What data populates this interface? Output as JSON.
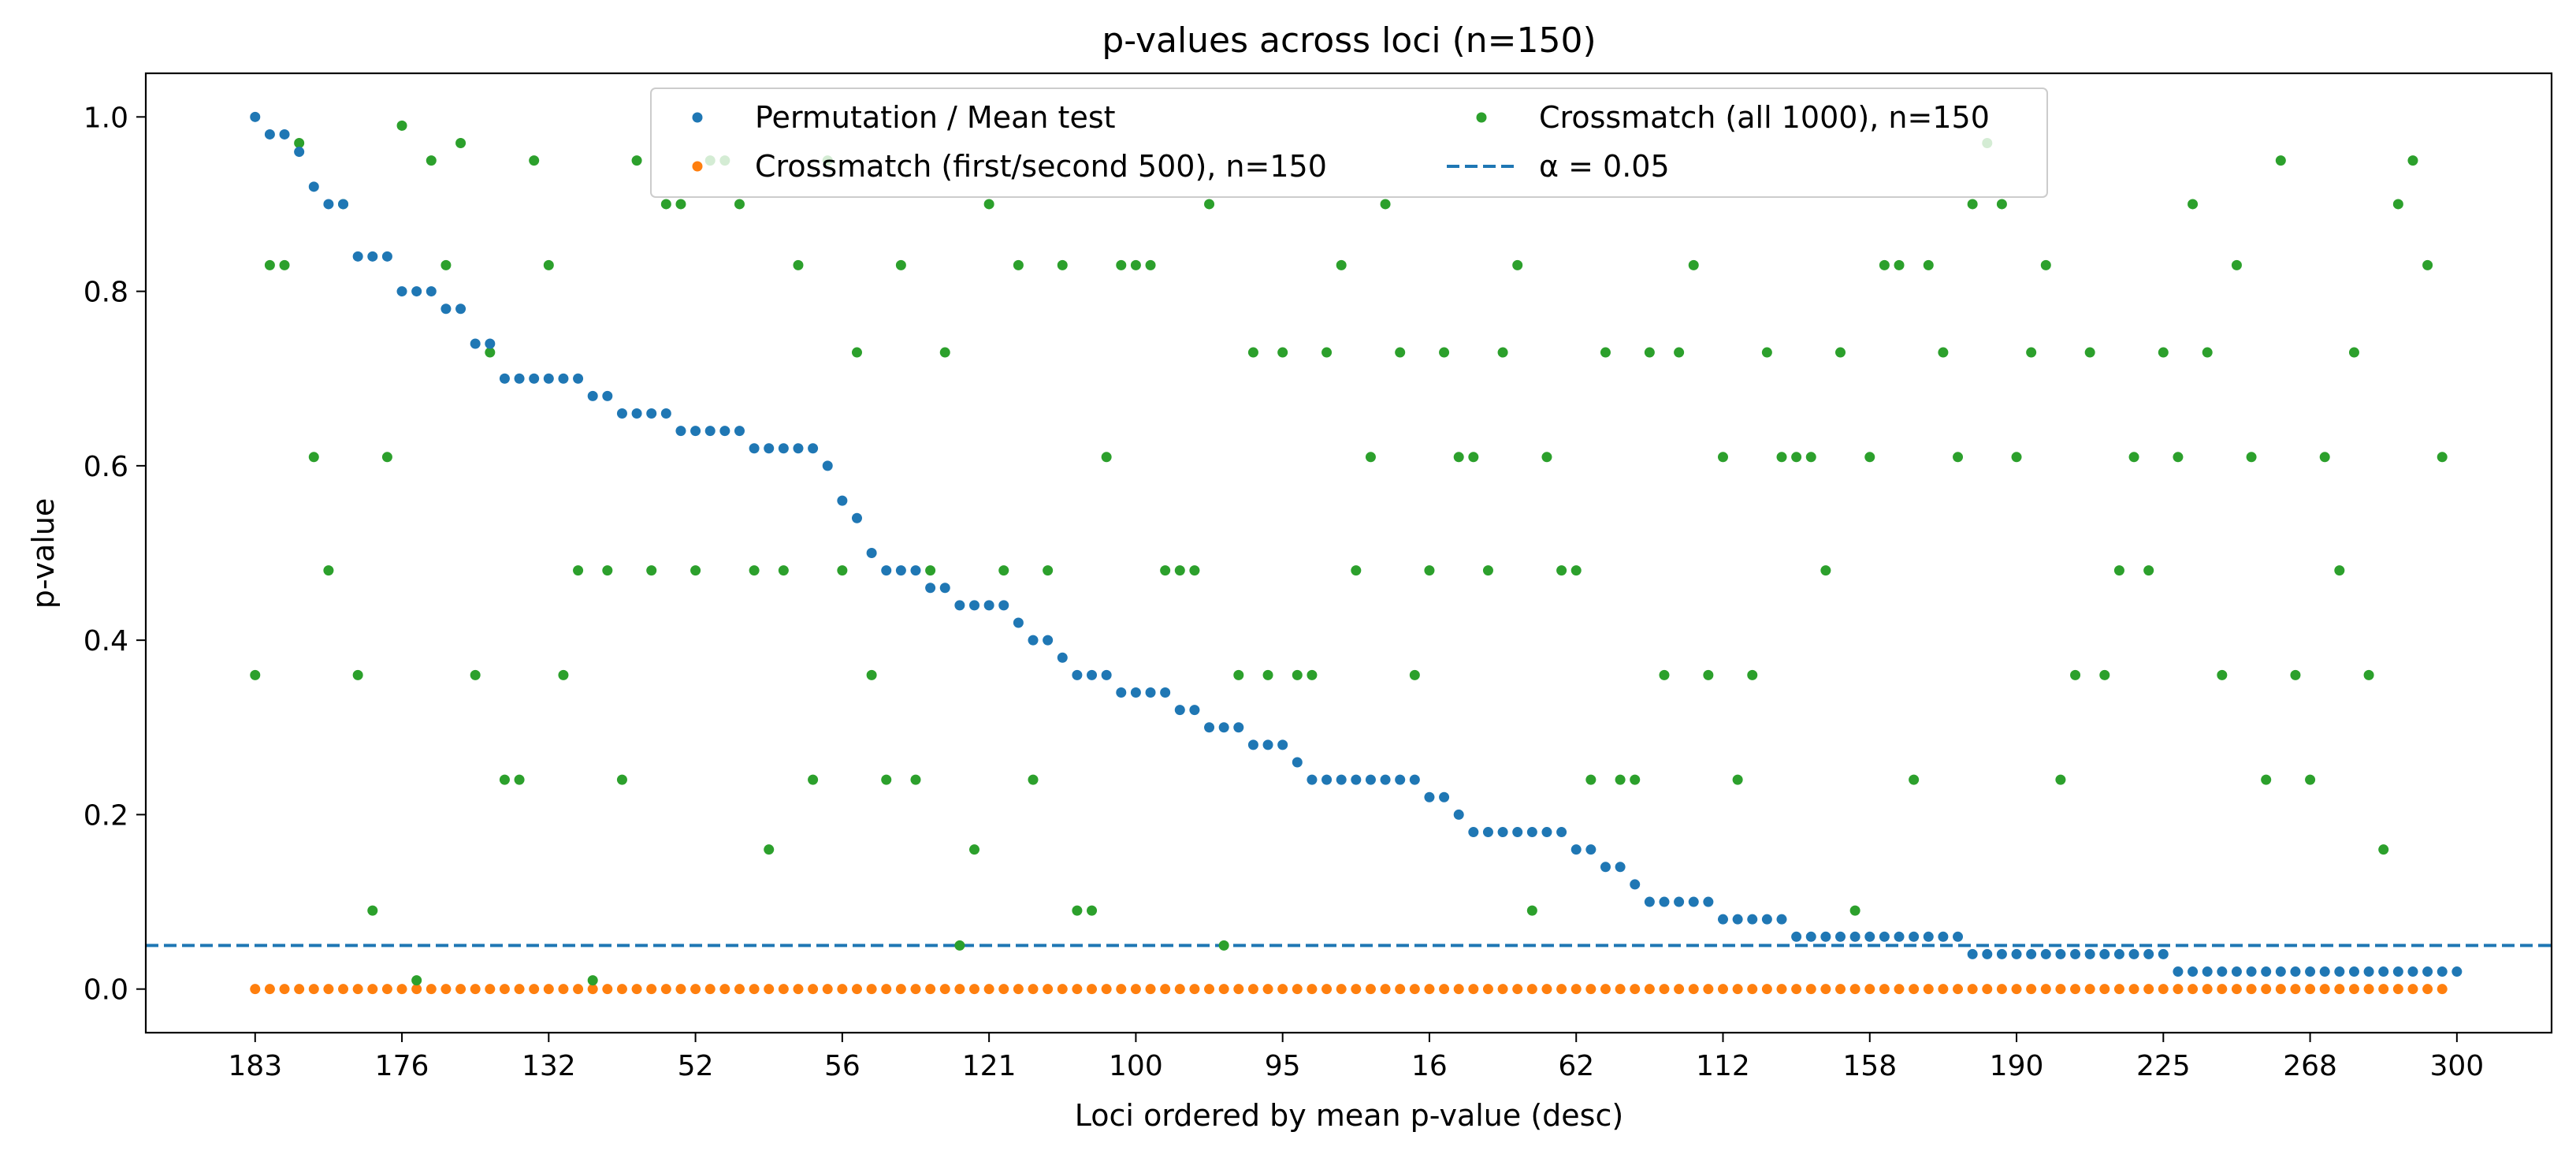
{
  "chart_data": {
    "type": "scatter",
    "title": "p-values across loci (n=150)",
    "xlabel": "Loci ordered by mean p-value (desc)",
    "ylabel": "p-value",
    "n_loci": 150,
    "xlim": [
      -7.45,
      156.45
    ],
    "ylim": [
      -0.05,
      1.05
    ],
    "x_tick_positions": [
      0,
      10,
      20,
      30,
      40,
      50,
      60,
      70,
      80,
      90,
      100,
      110,
      120,
      130,
      140,
      150
    ],
    "x_tick_labels": [
      "183",
      "176",
      "132",
      "52",
      "56",
      "121",
      "100",
      "95",
      "16",
      "62",
      "112",
      "158",
      "190",
      "225",
      "268",
      "300"
    ],
    "y_ticks": [
      0.0,
      0.2,
      0.4,
      0.6,
      0.8,
      1.0
    ],
    "y_tick_labels": [
      "0.0",
      "0.2",
      "0.4",
      "0.6",
      "0.8",
      "1.0"
    ],
    "grid": false,
    "legend_position": "top-center",
    "threshold": {
      "label": "α = 0.05",
      "value": 0.05,
      "color": "#1f77b4",
      "style": "dashed"
    },
    "series": [
      {
        "name": "Permutation / Mean test",
        "color": "#1f77b4",
        "values": [
          1.0,
          0.98,
          0.98,
          0.96,
          0.92,
          0.9,
          0.9,
          0.84,
          0.84,
          0.84,
          0.8,
          0.8,
          0.8,
          0.78,
          0.78,
          0.74,
          0.74,
          0.7,
          0.7,
          0.7,
          0.7,
          0.7,
          0.7,
          0.68,
          0.68,
          0.66,
          0.66,
          0.66,
          0.66,
          0.64,
          0.64,
          0.64,
          0.64,
          0.64,
          0.62,
          0.62,
          0.62,
          0.62,
          0.62,
          0.6,
          0.56,
          0.54,
          0.5,
          0.48,
          0.48,
          0.48,
          0.46,
          0.46,
          0.44,
          0.44,
          0.44,
          0.44,
          0.42,
          0.4,
          0.4,
          0.38,
          0.36,
          0.36,
          0.36,
          0.34,
          0.34,
          0.34,
          0.34,
          0.32,
          0.32,
          0.3,
          0.3,
          0.3,
          0.28,
          0.28,
          0.28,
          0.26,
          0.24,
          0.24,
          0.24,
          0.24,
          0.24,
          0.24,
          0.24,
          0.24,
          0.22,
          0.22,
          0.2,
          0.18,
          0.18,
          0.18,
          0.18,
          0.18,
          0.18,
          0.18,
          0.16,
          0.16,
          0.14,
          0.14,
          0.12,
          0.1,
          0.1,
          0.1,
          0.1,
          0.1,
          0.08,
          0.08,
          0.08,
          0.08,
          0.08,
          0.06,
          0.06,
          0.06,
          0.06,
          0.06,
          0.06,
          0.06,
          0.06,
          0.06,
          0.06,
          0.06,
          0.06,
          0.04,
          0.04,
          0.04,
          0.04,
          0.04,
          0.04,
          0.04,
          0.04,
          0.04,
          0.04,
          0.04,
          0.04,
          0.04,
          0.04,
          0.02,
          0.02,
          0.02,
          0.02,
          0.02,
          0.02,
          0.02,
          0.02,
          0.02,
          0.02,
          0.02,
          0.02,
          0.02,
          0.02,
          0.02,
          0.02,
          0.02,
          0.02,
          0.02,
          0.02
        ]
      },
      {
        "name": "Crossmatch (first/second 500), n=150",
        "color": "#ff7f0e",
        "constant_value": 0.0
      },
      {
        "name": "Crossmatch (all 1000), n=150",
        "color": "#2ca02c",
        "values": [
          0.36,
          0.83,
          0.83,
          0.97,
          0.61,
          0.48,
          0.9,
          0.36,
          0.09,
          0.61,
          0.99,
          0.01,
          0.95,
          0.83,
          0.97,
          0.36,
          0.73,
          0.24,
          0.24,
          0.95,
          0.83,
          0.36,
          0.48,
          0.01,
          0.48,
          0.24,
          0.95,
          0.48,
          0.9,
          0.9,
          0.48,
          0.95,
          0.95,
          0.9,
          0.48,
          0.16,
          0.48,
          0.83,
          0.24,
          0.95,
          0.48,
          0.73,
          0.36,
          0.24,
          0.83,
          0.24,
          0.48,
          0.73,
          0.05,
          0.16,
          0.9,
          0.48,
          0.83,
          0.24,
          0.48,
          0.83,
          0.09,
          0.09,
          0.61,
          0.83,
          0.83,
          0.83,
          0.48,
          0.48,
          0.48,
          0.9,
          0.05,
          0.36,
          0.73,
          0.36,
          0.73,
          0.36,
          0.36,
          0.73,
          0.83,
          0.48,
          0.61,
          0.9,
          0.73,
          0.36,
          0.48,
          0.73,
          0.61,
          0.61,
          0.48,
          0.73,
          0.83,
          0.09,
          0.61,
          0.48,
          0.48,
          0.24,
          0.73,
          0.24,
          0.24,
          0.73,
          0.36,
          0.73,
          0.83,
          0.36,
          0.61,
          0.24,
          0.36,
          0.73,
          0.61,
          0.61,
          0.61,
          0.48,
          0.73,
          0.09,
          0.61,
          0.83,
          0.83,
          0.24,
          0.83,
          0.73,
          0.61,
          0.9,
          0.97,
          0.9,
          0.61,
          0.73,
          0.83,
          0.24,
          0.36,
          0.73,
          0.36,
          0.48,
          0.61,
          0.48,
          0.73,
          0.61,
          0.9,
          0.73,
          0.36,
          0.83,
          0.61,
          0.24,
          0.95,
          0.36,
          0.24,
          0.61,
          0.48,
          0.73,
          0.36,
          0.16,
          0.9,
          0.95,
          0.83,
          0.61
        ]
      }
    ]
  }
}
